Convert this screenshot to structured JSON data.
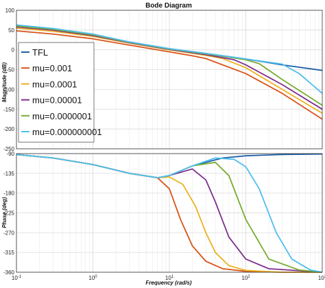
{
  "chart_data": {
    "type": "line",
    "title": "Bode Diagram",
    "xlabel": "Frequency  (rad/s)",
    "xscale": "log",
    "xlim": [
      0.1,
      1000
    ],
    "x_ticks": [
      "10-1",
      "100",
      "101",
      "102",
      "103"
    ],
    "grid": true,
    "legend_position": "top-left (magnitude panel)",
    "panels": [
      {
        "name": "magnitude",
        "ylabel": "Magnitude (dB)",
        "ylim": [
          -250,
          100
        ],
        "yticks": [
          100,
          50,
          0,
          -50,
          -100,
          -150,
          -200,
          -250
        ]
      },
      {
        "name": "phase",
        "ylabel": "Phase (deg)",
        "ylim": [
          -360,
          -90
        ],
        "yticks": [
          -90,
          -135,
          -180,
          -225,
          -270,
          -315,
          -360
        ]
      }
    ],
    "series": [
      {
        "name": "TFL",
        "color": "#1f5fa8",
        "magnitude": {
          "x": [
            0.1,
            0.3,
            1,
            3,
            10,
            30,
            100,
            300,
            1000
          ],
          "y": [
            62,
            53,
            39,
            20,
            3,
            -9,
            -23,
            -38,
            -52
          ]
        },
        "phase": {
          "x": [
            0.1,
            0.3,
            1,
            3,
            7,
            10,
            20,
            50,
            100,
            300,
            1000
          ],
          "y": [
            -92,
            -100,
            -115,
            -135,
            -145,
            -140,
            -118,
            -100,
            -95,
            -92,
            -91
          ]
        }
      },
      {
        "name": "mu=0.001",
        "color": "#d95319",
        "magnitude": {
          "x": [
            0.1,
            0.3,
            1,
            3,
            10,
            20,
            30,
            100,
            300,
            1000
          ],
          "y": [
            48,
            40,
            28,
            12,
            -5,
            -15,
            -22,
            -60,
            -110,
            -175
          ]
        },
        "phase": {
          "x": [
            0.1,
            0.3,
            1,
            3,
            7,
            10,
            14,
            20,
            30,
            50,
            100,
            300,
            1000
          ],
          "y": [
            -92,
            -100,
            -115,
            -135,
            -145,
            -170,
            -240,
            -300,
            -335,
            -352,
            -358,
            -360,
            -360
          ]
        }
      },
      {
        "name": "mu=0.0001",
        "color": "#edb120",
        "magnitude": {
          "x": [
            0.1,
            0.3,
            1,
            3,
            10,
            30,
            50,
            100,
            300,
            1000
          ],
          "y": [
            55,
            47,
            34,
            17,
            0,
            -14,
            -22,
            -45,
            -100,
            -160
          ]
        },
        "phase": {
          "x": [
            0.1,
            0.3,
            1,
            3,
            7,
            10,
            15,
            22,
            30,
            40,
            60,
            100,
            300,
            1000
          ],
          "y": [
            -92,
            -100,
            -115,
            -135,
            -145,
            -143,
            -160,
            -210,
            -270,
            -315,
            -345,
            -356,
            -360,
            -360
          ]
        }
      },
      {
        "name": "mu=0.00001",
        "color": "#7e2f8e",
        "magnitude": {
          "x": [
            0.1,
            0.3,
            1,
            3,
            10,
            30,
            70,
            100,
            300,
            1000
          ],
          "y": [
            58,
            50,
            36,
            18,
            1,
            -12,
            -25,
            -38,
            -88,
            -150
          ]
        },
        "phase": {
          "x": [
            0.1,
            0.3,
            1,
            3,
            7,
            10,
            20,
            30,
            40,
            60,
            100,
            200,
            1000
          ],
          "y": [
            -92,
            -100,
            -115,
            -135,
            -145,
            -140,
            -125,
            -150,
            -200,
            -280,
            -330,
            -352,
            -360
          ]
        }
      },
      {
        "name": "mu=0.0000001",
        "color": "#77ac30",
        "magnitude": {
          "x": [
            0.1,
            0.3,
            1,
            3,
            10,
            30,
            100,
            150,
            300,
            1000
          ],
          "y": [
            60,
            52,
            38,
            19,
            2,
            -10,
            -25,
            -35,
            -75,
            -140
          ]
        },
        "phase": {
          "x": [
            0.1,
            0.3,
            1,
            3,
            7,
            10,
            20,
            40,
            60,
            100,
            200,
            500,
            1000
          ],
          "y": [
            -92,
            -100,
            -115,
            -135,
            -145,
            -140,
            -118,
            -110,
            -140,
            -240,
            -330,
            -355,
            -360
          ]
        }
      },
      {
        "name": "mu=0.000000001",
        "color": "#4dbeee",
        "magnitude": {
          "x": [
            0.1,
            0.3,
            1,
            3,
            10,
            30,
            100,
            300,
            500,
            1000
          ],
          "y": [
            63,
            54,
            40,
            20,
            3,
            -9,
            -23,
            -36,
            -60,
            -110
          ]
        },
        "phase": {
          "x": [
            0.1,
            0.3,
            1,
            3,
            7,
            10,
            20,
            40,
            70,
            100,
            150,
            250,
            400,
            700,
            1000
          ],
          "y": [
            -92,
            -100,
            -115,
            -135,
            -145,
            -140,
            -118,
            -100,
            -103,
            -120,
            -170,
            -270,
            -330,
            -355,
            -360
          ]
        }
      }
    ]
  }
}
